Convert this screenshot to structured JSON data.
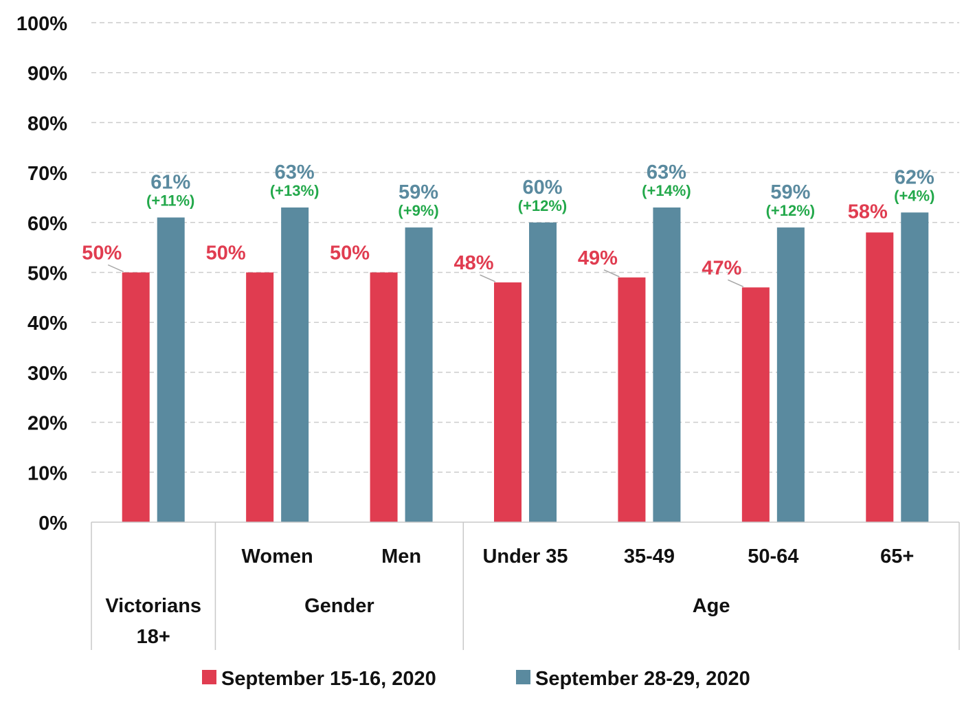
{
  "chart_data": {
    "type": "bar",
    "categories": [
      "Victorians 18+",
      "Women",
      "Men",
      "Under 35",
      "35-49",
      "50-64",
      "65+"
    ],
    "category_labels": [
      "",
      "Women",
      "Men",
      "Under 35",
      "35-49",
      "50-64",
      "65+"
    ],
    "groups": [
      {
        "label_lines": [
          "Victorians",
          "18+"
        ],
        "start": 0,
        "end": 0
      },
      {
        "label_lines": [
          "Gender"
        ],
        "start": 1,
        "end": 2
      },
      {
        "label_lines": [
          "Age"
        ],
        "start": 3,
        "end": 6
      }
    ],
    "series": [
      {
        "name": "September 15-16, 2020",
        "color": "#e03c50",
        "values": [
          50,
          50,
          50,
          48,
          49,
          47,
          58
        ]
      },
      {
        "name": "September 28-29, 2020",
        "color": "#5a8a9f",
        "values": [
          61,
          63,
          59,
          60,
          63,
          59,
          62
        ]
      }
    ],
    "value_labels": [
      [
        "50%",
        "50%",
        "50%",
        "48%",
        "49%",
        "47%",
        "58%"
      ],
      [
        "61%",
        "63%",
        "59%",
        "60%",
        "63%",
        "59%",
        "62%"
      ]
    ],
    "change_labels": [
      "(+11%)",
      "(+13%)",
      "(+9%)",
      "(+12%)",
      "(+14%)",
      "(+12%)",
      "(+4%)"
    ],
    "change_color": "#22a84a",
    "y_ticks": [
      "0%",
      "10%",
      "20%",
      "30%",
      "40%",
      "50%",
      "60%",
      "70%",
      "80%",
      "90%",
      "100%"
    ],
    "ylim": [
      0,
      100
    ],
    "grid": true,
    "legend_position": "bottom"
  }
}
